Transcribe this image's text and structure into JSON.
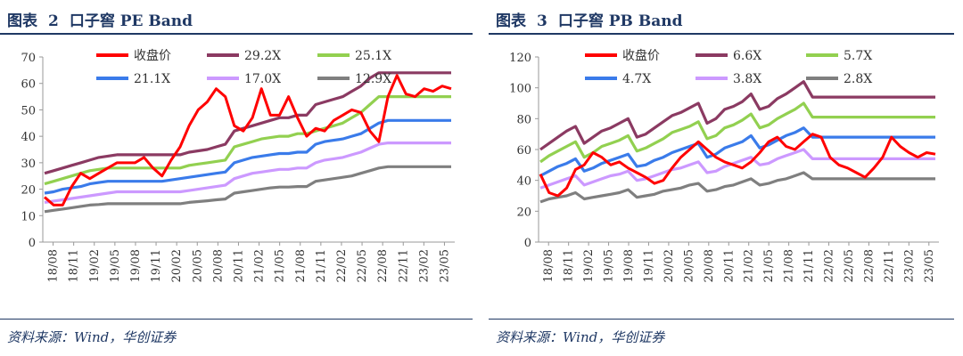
{
  "source": "资料来源：Wind，华创证券",
  "colors": {
    "price": "#ff0000",
    "band1": "#8b3a62",
    "band2": "#92d050",
    "band3": "#3a7bea",
    "band4": "#cc99ff",
    "band5": "#7f7f7f",
    "title": "#1f3864"
  },
  "chart_data": [
    {
      "type": "line",
      "figure_label": "图表",
      "figure_number": "2",
      "title": "口子窖 PE Band",
      "x_labels": [
        "18/08",
        "18/11",
        "19/02",
        "19/05",
        "19/08",
        "19/11",
        "20/02",
        "20/05",
        "20/08",
        "20/11",
        "21/02",
        "21/05",
        "21/08",
        "21/11",
        "22/02",
        "22/05",
        "22/08",
        "22/11",
        "23/02",
        "23/05"
      ],
      "ylim": [
        0,
        70
      ],
      "yticks": [
        0,
        10,
        20,
        30,
        40,
        50,
        60,
        70
      ],
      "series": [
        {
          "name": "收盘价",
          "values": [
            17,
            14,
            14,
            21,
            26,
            24,
            26,
            28,
            30,
            30,
            30,
            32,
            28,
            25,
            31,
            36,
            44,
            50,
            53,
            58,
            55,
            44,
            42,
            47,
            58,
            48,
            48,
            55,
            47,
            40,
            43,
            42,
            46,
            48,
            50,
            49,
            42,
            38,
            55,
            63,
            56,
            55,
            58,
            57,
            59,
            58
          ]
        },
        {
          "name": "29.2X",
          "values": [
            26,
            27,
            28,
            29,
            30,
            31,
            32,
            32.5,
            33,
            33,
            33,
            33,
            33,
            33,
            33,
            33,
            34,
            34.5,
            35,
            36,
            37,
            42,
            43,
            44,
            45,
            46,
            47,
            47,
            48,
            48,
            52,
            53,
            54,
            55,
            57,
            59,
            62,
            64,
            64,
            64,
            64,
            64,
            64,
            64,
            64,
            64
          ]
        },
        {
          "name": "25.1X",
          "values": [
            22,
            23,
            24,
            25,
            26,
            27,
            27.5,
            28,
            28,
            28,
            28,
            28,
            28,
            28,
            28,
            28,
            29,
            29.5,
            30,
            30.5,
            31,
            36,
            37,
            38,
            39,
            39.5,
            40,
            40,
            41,
            41,
            42,
            43,
            44,
            45,
            47,
            49,
            52,
            55,
            55,
            55,
            55,
            55,
            55,
            55,
            55,
            55
          ]
        },
        {
          "name": "21.1X",
          "values": [
            18.5,
            19,
            20,
            20.5,
            21,
            22,
            22.5,
            23,
            23,
            23,
            23,
            23,
            23,
            23,
            23.5,
            24,
            24.5,
            25,
            25.5,
            26,
            26.5,
            30,
            31,
            32,
            32.5,
            33,
            33.5,
            33.5,
            34,
            34,
            37,
            38,
            38.5,
            39,
            40,
            41,
            43,
            45,
            46,
            46,
            46,
            46,
            46,
            46,
            46,
            46
          ]
        },
        {
          "name": "17.0X",
          "values": [
            15,
            15.5,
            16,
            16.5,
            17,
            17.5,
            18,
            18.5,
            19,
            19,
            19,
            19,
            19,
            19,
            19,
            19,
            19.5,
            20,
            20.5,
            21,
            21.5,
            24,
            25,
            26,
            26.5,
            27,
            27.5,
            27.5,
            28,
            28,
            30,
            31,
            31.5,
            32,
            33,
            34,
            35.5,
            37,
            37.5,
            37.5,
            37.5,
            37.5,
            37.5,
            37.5,
            37.5,
            37.5
          ]
        },
        {
          "name": "12.9X",
          "values": [
            11.5,
            12,
            12.5,
            13,
            13.5,
            14,
            14.2,
            14.5,
            14.5,
            14.5,
            14.5,
            14.5,
            14.5,
            14.5,
            14.5,
            14.5,
            15,
            15.3,
            15.6,
            16,
            16.3,
            18.5,
            19,
            19.5,
            20,
            20.5,
            20.8,
            20.8,
            21,
            21,
            23,
            23.5,
            24,
            24.5,
            25,
            26,
            27,
            28,
            28.5,
            28.5,
            28.5,
            28.5,
            28.5,
            28.5,
            28.5,
            28.5
          ]
        }
      ]
    },
    {
      "type": "line",
      "figure_label": "图表",
      "figure_number": "3",
      "title": "口子窖 PB Band",
      "x_labels": [
        "18/08",
        "18/11",
        "19/02",
        "19/05",
        "19/08",
        "19/11",
        "20/02",
        "20/05",
        "20/08",
        "20/11",
        "21/02",
        "21/05",
        "21/08",
        "21/11",
        "22/02",
        "22/05",
        "22/08",
        "22/11",
        "23/02",
        "23/05"
      ],
      "ylim": [
        0,
        120
      ],
      "yticks": [
        0,
        20,
        40,
        60,
        80,
        100,
        120
      ],
      "series": [
        {
          "name": "收盘价",
          "values": [
            44,
            32,
            30,
            35,
            47,
            50,
            58,
            55,
            50,
            52,
            48,
            45,
            42,
            38,
            40,
            48,
            55,
            60,
            65,
            60,
            55,
            52,
            50,
            48,
            52,
            58,
            65,
            68,
            62,
            60,
            65,
            70,
            68,
            55,
            50,
            48,
            45,
            42,
            48,
            55,
            68,
            62,
            58,
            55,
            58,
            57
          ]
        },
        {
          "name": "6.6X",
          "values": [
            60,
            64,
            68,
            72,
            75,
            64,
            68,
            72,
            74,
            77,
            80,
            68,
            70,
            74,
            78,
            82,
            84,
            87,
            90,
            77,
            80,
            86,
            88,
            91,
            96,
            86,
            88,
            93,
            96,
            100,
            104,
            94,
            94,
            94,
            94,
            94,
            94,
            94,
            94,
            94,
            94,
            94,
            94,
            94,
            94,
            94
          ]
        },
        {
          "name": "5.7X",
          "values": [
            52,
            56,
            59,
            62,
            65,
            55,
            58,
            62,
            64,
            66,
            69,
            59,
            61,
            64,
            67,
            71,
            73,
            75,
            78,
            67,
            69,
            74,
            76,
            79,
            83,
            74,
            76,
            80,
            83,
            86,
            90,
            81,
            81,
            81,
            81,
            81,
            81,
            81,
            81,
            81,
            81,
            81,
            81,
            81,
            81,
            81
          ]
        },
        {
          "name": "4.7X",
          "values": [
            43,
            46,
            49,
            51,
            54,
            46,
            48,
            51,
            53,
            55,
            57,
            49,
            50,
            53,
            55,
            58,
            60,
            62,
            64,
            55,
            57,
            61,
            63,
            65,
            69,
            61,
            63,
            66,
            69,
            71,
            74,
            68,
            68,
            68,
            68,
            68,
            68,
            68,
            68,
            68,
            68,
            68,
            68,
            68,
            68,
            68
          ]
        },
        {
          "name": "3.8X",
          "values": [
            35,
            37,
            39,
            41,
            43,
            37,
            39,
            41,
            43,
            44,
            46,
            40,
            41,
            43,
            45,
            47,
            48,
            50,
            52,
            45,
            46,
            49,
            51,
            53,
            55,
            50,
            51,
            54,
            56,
            58,
            60,
            54,
            54,
            54,
            54,
            54,
            54,
            54,
            54,
            54,
            54,
            54,
            54,
            54,
            54,
            54
          ]
        },
        {
          "name": "2.8X",
          "values": [
            26,
            28,
            29,
            30,
            32,
            28,
            29,
            30,
            31,
            32,
            34,
            29,
            30,
            31,
            33,
            34,
            35,
            37,
            38,
            33,
            34,
            36,
            37,
            39,
            41,
            37,
            38,
            40,
            41,
            43,
            45,
            41,
            41,
            41,
            41,
            41,
            41,
            41,
            41,
            41,
            41,
            41,
            41,
            41,
            41,
            41
          ]
        }
      ]
    }
  ]
}
